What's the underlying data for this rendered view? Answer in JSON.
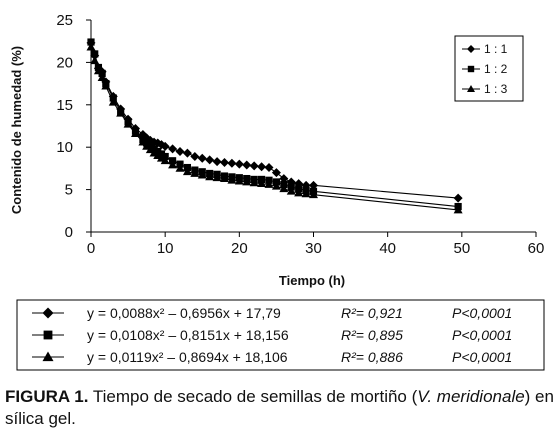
{
  "chart_data": {
    "type": "line",
    "title": "",
    "xlabel": "Tiempo (h)",
    "ylabel": "Contenido de humedad (%)",
    "xlim": [
      0,
      60
    ],
    "ylim": [
      0,
      25
    ],
    "xticks": [
      "0",
      "10",
      "20",
      "30",
      "40",
      "50",
      "60"
    ],
    "yticks": [
      "0",
      "5",
      "10",
      "15",
      "20",
      "25"
    ],
    "grid": false,
    "legend_position": "top-right",
    "x": [
      0,
      0.5,
      1,
      1.5,
      2,
      3,
      4,
      5,
      6,
      7,
      7.5,
      8,
      8.5,
      9,
      9.5,
      10,
      11,
      12,
      13,
      14,
      15,
      16,
      17,
      18,
      19,
      20,
      21,
      22,
      23,
      24,
      25,
      26,
      27,
      28,
      29,
      30,
      49.5
    ],
    "series": [
      {
        "name": "1 : 1",
        "marker": "diamond",
        "values": [
          22.3,
          20.8,
          19.3,
          18.9,
          17.7,
          16.0,
          14.5,
          13.3,
          12.2,
          11.5,
          11.1,
          10.8,
          10.6,
          10.5,
          10.3,
          10.1,
          9.8,
          9.5,
          9.3,
          8.9,
          8.7,
          8.5,
          8.3,
          8.2,
          8.1,
          8.0,
          7.9,
          7.8,
          7.7,
          7.6,
          7.0,
          6.3,
          5.9,
          5.7,
          5.5,
          5.5,
          4.0
        ]
      },
      {
        "name": "1 : 2",
        "marker": "square",
        "values": [
          22.4,
          21.0,
          19.4,
          18.7,
          17.5,
          15.8,
          14.2,
          13.0,
          11.9,
          10.9,
          10.5,
          10.2,
          9.8,
          9.5,
          9.2,
          8.9,
          8.4,
          8.0,
          7.6,
          7.3,
          7.1,
          6.9,
          6.8,
          6.6,
          6.5,
          6.4,
          6.3,
          6.2,
          6.2,
          6.1,
          5.9,
          5.6,
          5.3,
          5.1,
          4.9,
          4.8,
          3.0
        ]
      },
      {
        "name": "1 : 3",
        "marker": "triangle",
        "values": [
          21.8,
          20.2,
          19.0,
          18.2,
          17.2,
          15.3,
          14.0,
          12.7,
          11.6,
          10.6,
          10.1,
          9.7,
          9.3,
          9.0,
          8.7,
          8.4,
          7.9,
          7.5,
          7.1,
          6.9,
          6.7,
          6.5,
          6.4,
          6.3,
          6.1,
          6.0,
          5.9,
          5.8,
          5.7,
          5.6,
          5.4,
          5.1,
          4.8,
          4.6,
          4.5,
          4.4,
          2.6
        ]
      }
    ],
    "fit_table": [
      {
        "equation": "y = 0,0088x² – 0,6956x + 17,79",
        "r2": "R²= 0,921",
        "p": "P<0,0001"
      },
      {
        "equation": "y = 0,0108x² – 0,8151x + 18,156",
        "r2": "R²= 0,895",
        "p": "P<0,0001"
      },
      {
        "equation": "y = 0,0119x² – 0,8694x + 18,106",
        "r2": "R²= 0,886",
        "p": "P<0,0001"
      }
    ]
  },
  "caption": {
    "label": "FIGURA 1.",
    "text_before": " Tiempo de secado de semillas de mortiño (",
    "species": "V. meridionale",
    "text_after": ") en sílica gel."
  }
}
